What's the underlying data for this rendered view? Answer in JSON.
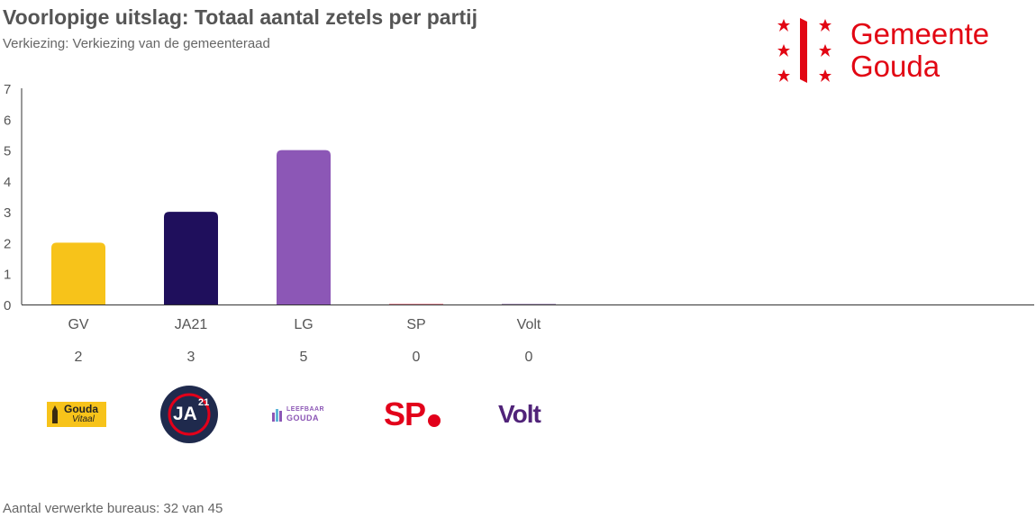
{
  "header": {
    "title": "Voorlopige uitslag: Totaal aantal zetels per partij",
    "subtitle": "Verkiezing: Verkiezing van de gemeenteraad"
  },
  "brand": {
    "line1": "Gemeente",
    "line2": "Gouda",
    "color": "#e20613"
  },
  "chart_data": {
    "type": "bar",
    "title": "Voorlopige uitslag: Totaal aantal zetels per partij",
    "xlabel": "",
    "ylabel": "",
    "ylim": [
      0,
      7
    ],
    "yticks": [
      0,
      1,
      2,
      3,
      4,
      5,
      6,
      7
    ],
    "categories": [
      "GV",
      "JA21",
      "LG",
      "SP",
      "Volt"
    ],
    "values": [
      2,
      3,
      5,
      0,
      0
    ],
    "colors": [
      "#f7c31a",
      "#1f0f5c",
      "#8c57b6",
      "#e2001a",
      "#502379"
    ],
    "data_labels": [
      "2",
      "3",
      "5",
      "0",
      "0"
    ]
  },
  "logos": [
    {
      "icon": "gouda-vitaal-logo",
      "line1": "Gouda",
      "line2": "Vitaal"
    },
    {
      "icon": "ja21-logo",
      "text": "JA",
      "sup": "21"
    },
    {
      "icon": "leefbaar-gouda-logo",
      "line1": "LEEFBAAR",
      "line2": "GOUDA"
    },
    {
      "icon": "sp-logo",
      "text": "SP"
    },
    {
      "icon": "volt-logo",
      "text": "Volt"
    }
  ],
  "footer": {
    "text": "Aantal verwerkte bureaus: 32 van 45"
  }
}
